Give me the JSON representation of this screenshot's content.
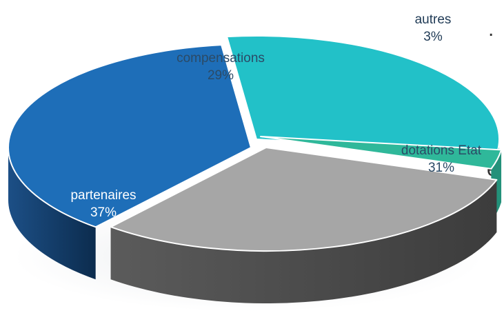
{
  "chart_data": {
    "type": "pie",
    "title": "",
    "legend": "none",
    "slices": [
      {
        "label": "compensations",
        "percent_label": "29%",
        "value": 29,
        "color": "#22c1c8",
        "label_style": "dark"
      },
      {
        "label": "autres",
        "percent_label": "3%",
        "value": 3,
        "color": "#2fb89a",
        "label_style": "external"
      },
      {
        "label": "dotations Etat",
        "percent_label": "31%",
        "value": 31,
        "color": "#a6a6a6",
        "label_style": "dark"
      },
      {
        "label": "partenaires",
        "percent_label": "37%",
        "value": 37,
        "color": "#1e6eb8",
        "label_style": "light"
      }
    ]
  },
  "background_fragments": [
    "e"
  ]
}
